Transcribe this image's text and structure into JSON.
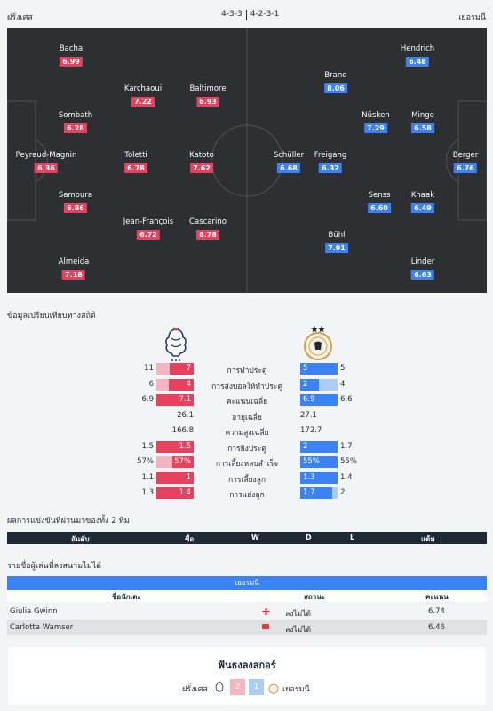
{
  "header": {
    "home_team": "ฝรั่งเศส",
    "away_team": "เยอรมนี",
    "home_formation": "4-3-3",
    "away_formation": "4-2-3-1"
  },
  "colors": {
    "home": "#e8415e",
    "away": "#3b82f6",
    "home_light": "#f5b5c0",
    "away_light": "#a9cdf5",
    "pitch": "#2d2f33"
  },
  "home_players": [
    {
      "name": "Bacha",
      "rating": "6.99"
    },
    {
      "name": "Karchaoui",
      "rating": "7.22"
    },
    {
      "name": "Baltimore",
      "rating": "6.93"
    },
    {
      "name": "Sombath",
      "rating": "6.28"
    },
    {
      "name": "Peyraud-Magnin",
      "rating": "6.36"
    },
    {
      "name": "Toletti",
      "rating": "6.78"
    },
    {
      "name": "Katoto",
      "rating": "7.62"
    },
    {
      "name": "Samoura",
      "rating": "6.86"
    },
    {
      "name": "Jean-François",
      "rating": "6.72"
    },
    {
      "name": "Cascarino",
      "rating": "8.78"
    },
    {
      "name": "Almeida",
      "rating": "7.18"
    }
  ],
  "away_players": [
    {
      "name": "Hendrich",
      "rating": "6.48"
    },
    {
      "name": "Brand",
      "rating": "8.06"
    },
    {
      "name": "Nüsken",
      "rating": "7.29"
    },
    {
      "name": "Minge",
      "rating": "6.58"
    },
    {
      "name": "Schüller",
      "rating": "6.68"
    },
    {
      "name": "Freigang",
      "rating": "6.32"
    },
    {
      "name": "Berger",
      "rating": "6.76"
    },
    {
      "name": "Senss",
      "rating": "6.60"
    },
    {
      "name": "Knaak",
      "rating": "6.49"
    },
    {
      "name": "Bühl",
      "rating": "7.91"
    },
    {
      "name": "Linder",
      "rating": "6.63"
    }
  ],
  "stats": {
    "title": "ข้อมูลเปรียบเทียบทางสถิติ",
    "rows": [
      {
        "label": "การทำประตู",
        "home_total": "11",
        "home_avg": "7",
        "away_avg": "5",
        "away_total": "5",
        "home_frac": 0.64,
        "away_frac": 1.0,
        "bars": true
      },
      {
        "label": "การส่งบอลให้ทำประตู",
        "home_total": "6",
        "home_avg": "4",
        "away_avg": "2",
        "away_total": "4",
        "home_frac": 0.67,
        "away_frac": 0.5,
        "bars": true
      },
      {
        "label": "คะแนนเฉลี่ย",
        "home_total": "6.9",
        "home_avg": "7.1",
        "away_avg": "6.9",
        "away_total": "6.6",
        "home_frac": 1.0,
        "away_frac": 1.0,
        "bars": true
      },
      {
        "label": "อายุเฉลี่ย",
        "home_avg": "26.1",
        "away_avg": "27.1",
        "bars": false
      },
      {
        "label": "ความสูงเฉลี่ย",
        "home_avg": "166.8",
        "away_avg": "172.7",
        "bars": false
      },
      {
        "label": "การยิงประตู",
        "home_total": "1.5",
        "home_avg": "1.5",
        "away_avg": "2",
        "away_total": "1.7",
        "home_frac": 1.0,
        "away_frac": 1.0,
        "bars": true
      },
      {
        "label": "การเลี้ยงหลบสำเร็จ",
        "home_total": "57%",
        "home_avg": "57%",
        "away_avg": "55%",
        "away_total": "55%",
        "home_frac": 0.57,
        "away_frac": 1.0,
        "bars": true
      },
      {
        "label": "การเลี้ยงลูก",
        "home_total": "1.1",
        "home_avg": "1",
        "away_avg": "1.3",
        "away_total": "1.4",
        "home_frac": 1.0,
        "away_frac": 1.0,
        "bars": true
      },
      {
        "label": "การแย่งลูก",
        "home_total": "1.3",
        "home_avg": "1.4",
        "away_avg": "1.7",
        "away_total": "2",
        "home_frac": 1.0,
        "away_frac": 0.85,
        "bars": true
      }
    ]
  },
  "h2h": {
    "title": "ผลการแข่งขันที่ผ่านมาของทั้ง 2 ทีม",
    "columns": {
      "rank": "อันดับ",
      "name": "ชื่อ",
      "w": "W",
      "d": "D",
      "l": "L",
      "points": "แต้ม"
    }
  },
  "missing": {
    "title": "รายชื่อผู้เล่นที่ลงสนามไม่ได้",
    "team": "เยอรมนี",
    "columns": {
      "player": "ชื่อนักเตะ",
      "status": "สถานะ",
      "rating": "คะแนน"
    },
    "rows": [
      {
        "player": "Giulia Gwinn",
        "status": "ลงไม่ได้",
        "rating": "6.74",
        "icon": "injury-cross-icon"
      },
      {
        "player": "Carlotta Wamser",
        "status": "ลงไม่ได้",
        "rating": "6.46",
        "icon": "red-card-icon"
      }
    ]
  },
  "fans": {
    "title": "ฟันธงลงสกอร์",
    "home_team": "ฝรั่งเศส",
    "away_team": "เยอรมนี",
    "home_votes": "2",
    "away_votes": "1"
  }
}
